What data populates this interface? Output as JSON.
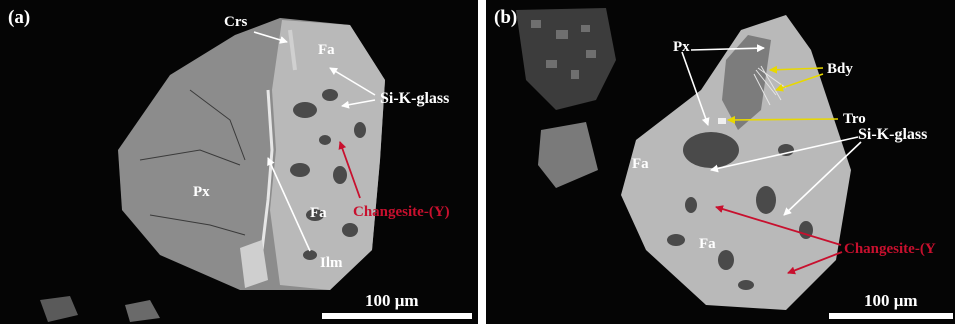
{
  "figure": {
    "panel_a": {
      "letter": "(a)",
      "labels": {
        "crs": "Crs",
        "fa_top": "Fa",
        "si_k_glass": "Si-K-glass",
        "px": "Px",
        "fa_bottom": "Fa",
        "changesite": "Changesite-(Y)",
        "ilm": "Ilm"
      },
      "scale_label": "100 μm"
    },
    "panel_b": {
      "letter": "(b)",
      "labels": {
        "px": "Px",
        "bdy": "Bdy",
        "tro": "Tro",
        "si_k_glass": "Si-K-glass",
        "fa_left": "Fa",
        "fa_bottom": "Fa",
        "changesite": "Changesite-(Y"
      },
      "scale_label": "100 μm"
    },
    "colors": {
      "background": "#050505",
      "white_arrows": "#ffffff",
      "yellow_arrows": "#e8d800",
      "red_arrows": "#c8102e",
      "pyroxene_grey": "#8c8c8c",
      "fayalite_grey": "#b9b9b9",
      "glass_dark_grey": "#4a4a4a"
    }
  }
}
